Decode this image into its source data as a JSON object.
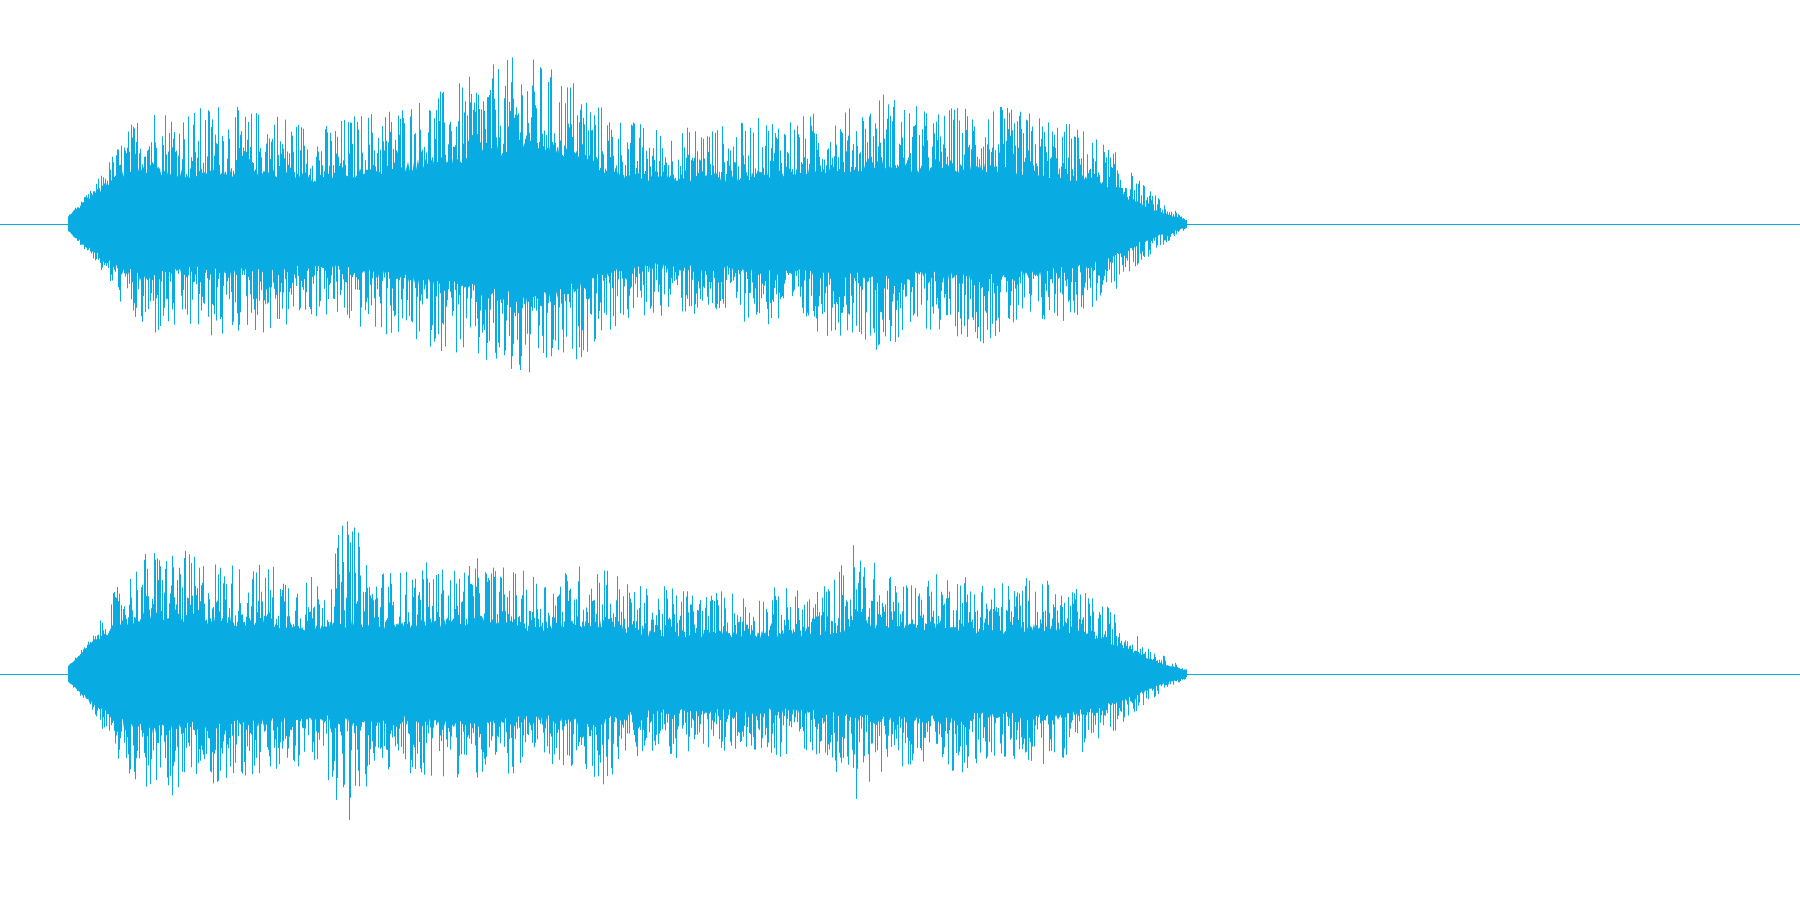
{
  "waveform": {
    "color": "#08acE2",
    "background": "#ffffff",
    "channels": [
      {
        "name": "",
        "peak_envelope": [
          0.05,
          0.22,
          0.48,
          0.72,
          0.7,
          0.68,
          0.74,
          0.66,
          0.7,
          0.62,
          0.58,
          0.64,
          0.68,
          0.72,
          0.76,
          0.8,
          0.88,
          0.96,
          1.0,
          0.92,
          0.86,
          0.7,
          0.62,
          0.58,
          0.56,
          0.6,
          0.58,
          0.62,
          0.66,
          0.64,
          0.7,
          0.68,
          0.8,
          0.72,
          0.66,
          0.7,
          0.74,
          0.68,
          0.66,
          0.62,
          0.56,
          0.46,
          0.28,
          0.14,
          0.03
        ],
        "rms_envelope": [
          0.04,
          0.16,
          0.26,
          0.3,
          0.28,
          0.26,
          0.28,
          0.26,
          0.28,
          0.26,
          0.24,
          0.26,
          0.28,
          0.3,
          0.32,
          0.34,
          0.36,
          0.4,
          0.42,
          0.4,
          0.36,
          0.3,
          0.26,
          0.24,
          0.24,
          0.26,
          0.24,
          0.26,
          0.28,
          0.28,
          0.3,
          0.3,
          0.32,
          0.3,
          0.28,
          0.3,
          0.3,
          0.28,
          0.28,
          0.26,
          0.24,
          0.2,
          0.12,
          0.06,
          0.02
        ]
      },
      {
        "name": "",
        "peak_envelope": [
          0.05,
          0.24,
          0.56,
          0.74,
          0.78,
          0.72,
          0.7,
          0.66,
          0.68,
          0.62,
          0.58,
          1.0,
          0.66,
          0.62,
          0.68,
          0.64,
          0.7,
          0.66,
          0.62,
          0.6,
          0.66,
          0.72,
          0.56,
          0.52,
          0.54,
          0.5,
          0.52,
          0.48,
          0.54,
          0.5,
          0.56,
          0.84,
          0.62,
          0.58,
          0.6,
          0.64,
          0.58,
          0.56,
          0.6,
          0.54,
          0.5,
          0.4,
          0.24,
          0.12,
          0.03
        ],
        "rms_envelope": [
          0.04,
          0.18,
          0.28,
          0.32,
          0.32,
          0.3,
          0.3,
          0.28,
          0.28,
          0.26,
          0.26,
          0.28,
          0.28,
          0.26,
          0.28,
          0.28,
          0.3,
          0.28,
          0.26,
          0.26,
          0.28,
          0.28,
          0.24,
          0.22,
          0.22,
          0.22,
          0.22,
          0.22,
          0.22,
          0.22,
          0.24,
          0.26,
          0.26,
          0.26,
          0.26,
          0.26,
          0.24,
          0.24,
          0.26,
          0.24,
          0.22,
          0.18,
          0.12,
          0.06,
          0.02
        ]
      }
    ]
  }
}
